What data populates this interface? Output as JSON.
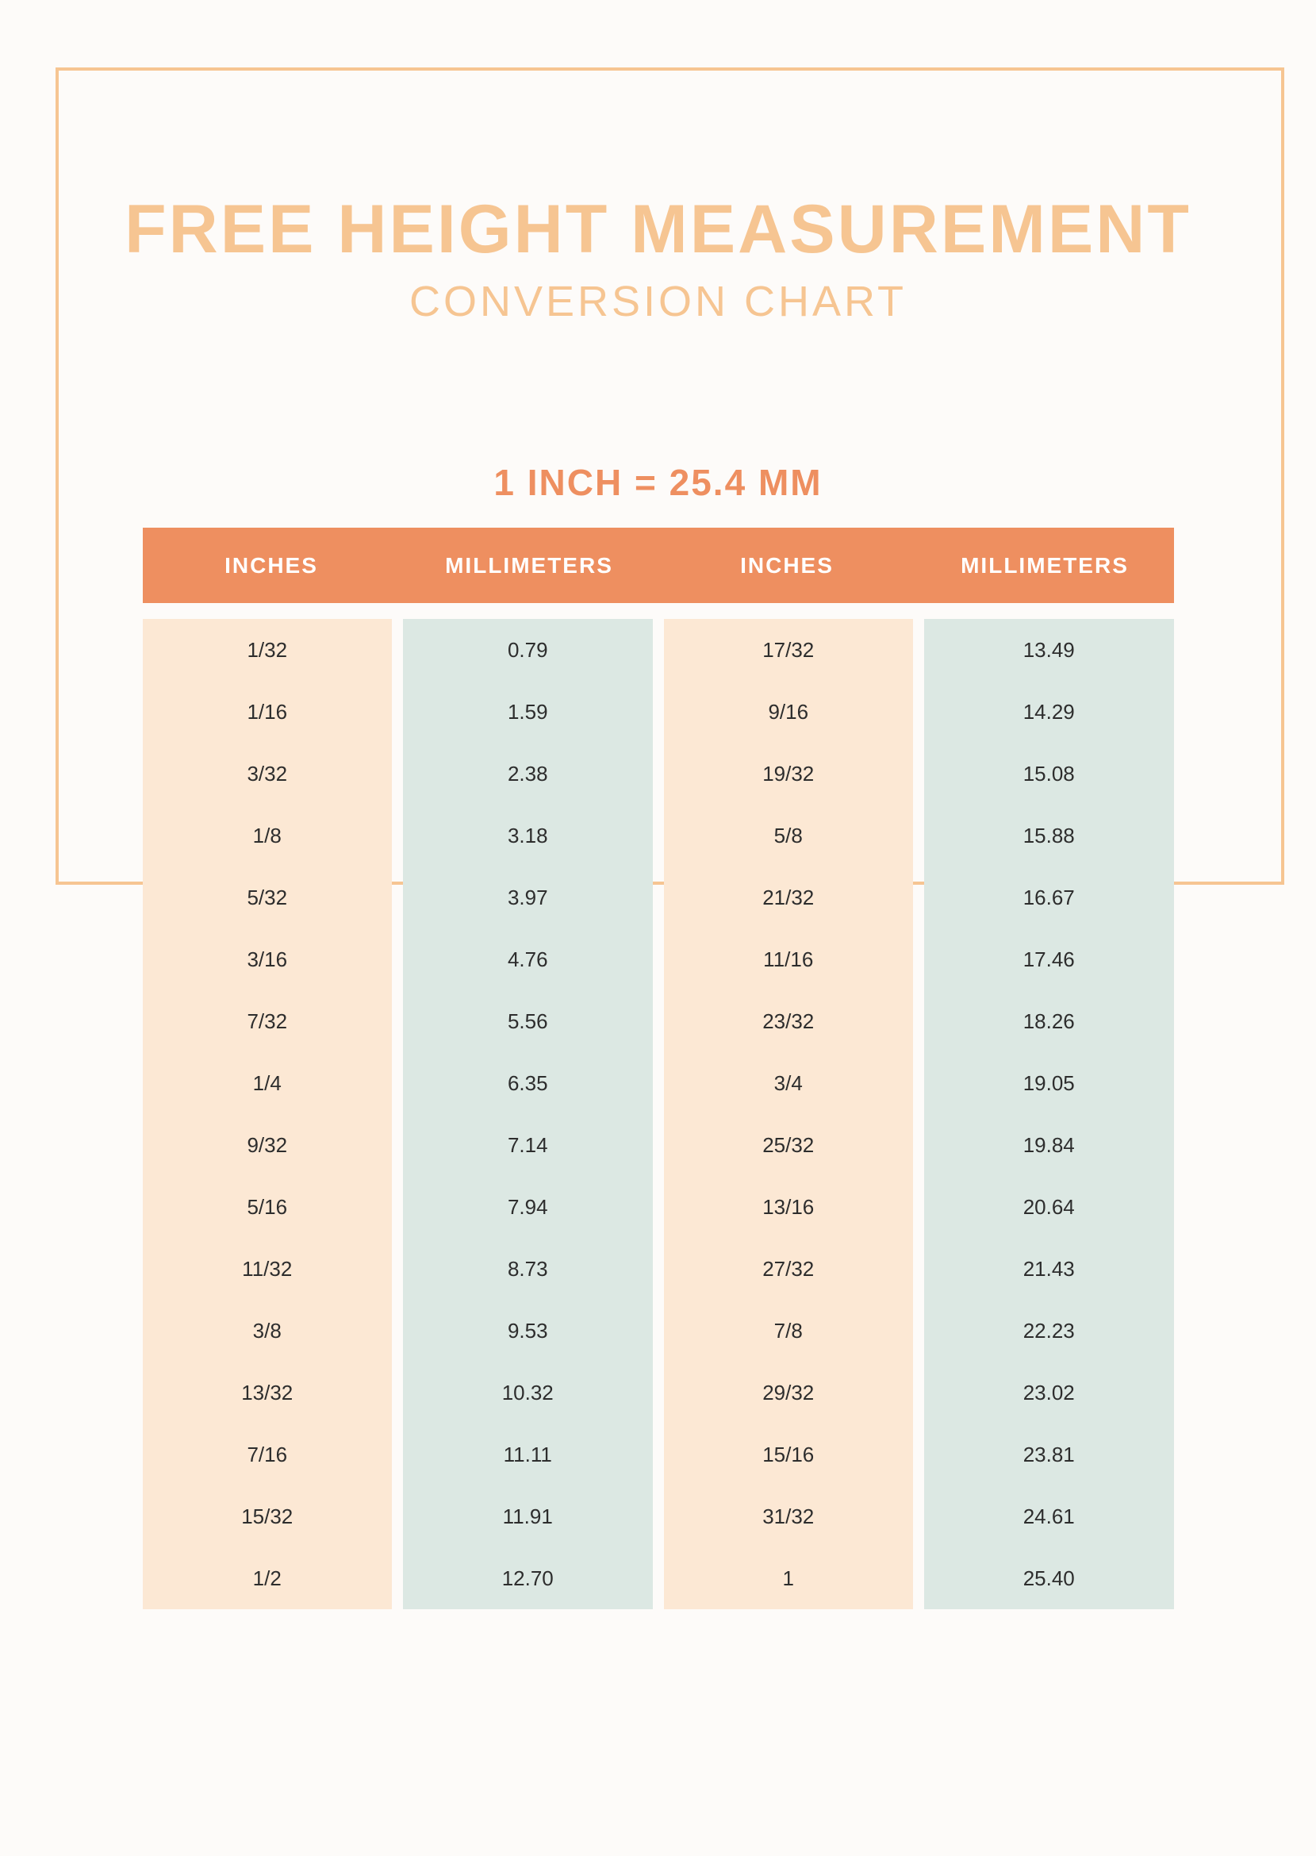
{
  "title": {
    "line1": "FREE HEIGHT MEASUREMENT",
    "line2": "CONVERSION CHART"
  },
  "formula": "1 INCH = 25.4 MM",
  "columns": [
    "INCHES",
    "MILLIMETERS",
    "INCHES",
    "MILLIMETERS"
  ],
  "colors": {
    "background": "#fdfbf9",
    "border": "#f6c592",
    "title": "#f6c592",
    "formula": "#ee8f60",
    "header_bg": "#ee8f60",
    "header_text": "#ffffff",
    "inches_bg": "#fce8d4",
    "mm_bg": "#dce8e3",
    "cell_text": "#2d2d2d"
  },
  "rows": [
    {
      "in1": "1/32",
      "mm1": "0.79",
      "in2": "17/32",
      "mm2": "13.49"
    },
    {
      "in1": "1/16",
      "mm1": "1.59",
      "in2": "9/16",
      "mm2": "14.29"
    },
    {
      "in1": "3/32",
      "mm1": "2.38",
      "in2": "19/32",
      "mm2": "15.08"
    },
    {
      "in1": "1/8",
      "mm1": "3.18",
      "in2": "5/8",
      "mm2": "15.88"
    },
    {
      "in1": "5/32",
      "mm1": "3.97",
      "in2": "21/32",
      "mm2": "16.67"
    },
    {
      "in1": "3/16",
      "mm1": "4.76",
      "in2": "11/16",
      "mm2": "17.46"
    },
    {
      "in1": "7/32",
      "mm1": "5.56",
      "in2": "23/32",
      "mm2": "18.26"
    },
    {
      "in1": "1/4",
      "mm1": "6.35",
      "in2": "3/4",
      "mm2": "19.05"
    },
    {
      "in1": "9/32",
      "mm1": "7.14",
      "in2": "25/32",
      "mm2": "19.84"
    },
    {
      "in1": "5/16",
      "mm1": "7.94",
      "in2": "13/16",
      "mm2": "20.64"
    },
    {
      "in1": "11/32",
      "mm1": "8.73",
      "in2": "27/32",
      "mm2": "21.43"
    },
    {
      "in1": "3/8",
      "mm1": "9.53",
      "in2": "7/8",
      "mm2": "22.23"
    },
    {
      "in1": "13/32",
      "mm1": "10.32",
      "in2": "29/32",
      "mm2": "23.02"
    },
    {
      "in1": "7/16",
      "mm1": "11.11",
      "in2": "15/16",
      "mm2": "23.81"
    },
    {
      "in1": "15/32",
      "mm1": "11.91",
      "in2": "31/32",
      "mm2": "24.61"
    },
    {
      "in1": "1/2",
      "mm1": "12.70",
      "in2": "1",
      "mm2": "25.40"
    }
  ]
}
